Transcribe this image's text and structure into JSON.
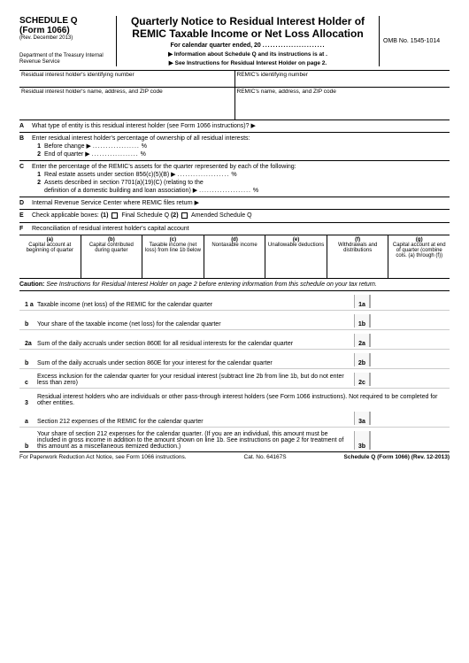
{
  "header": {
    "schedule": "SCHEDULE Q",
    "form": "(Form 1066)",
    "rev": "(Rev. December 2013)",
    "dept": "Department of the Treasury\nInternal Revenue Service",
    "title": "Quarterly Notice to Residual Interest Holder of REMIC Taxable Income or Net Loss Allocation",
    "for_qtr": "For calendar quarter ended, 20",
    "info1": "Information about Schedule Q and its instructions is at .",
    "info2": "See Instructions for Residual Interest Holder on page 2.",
    "omb": "OMB No. 1545-1014"
  },
  "id": {
    "left": "Residual interest holder's identifying number",
    "right": "REMIC's identifying number"
  },
  "addr": {
    "left": "Residual interest holder's name, address, and ZIP code",
    "right": "REMIC's name, address, and ZIP code"
  },
  "A": "What type of entity is this residual interest holder (see Form 1066 instructions)? ▶",
  "B": {
    "lead": "Enter residual interest holder's percentage of ownership of all residual interests:",
    "b1": "Before change ▶",
    "b2": "End of quarter ▶",
    "pct": "%"
  },
  "C": {
    "lead": "Enter the percentage of the REMIC's assets for the quarter represented by each of the following:",
    "c1": "Real estate assets under section 856(c)(5)(B) ▶",
    "c2a": "Assets described in section 7701(a)(19)(C) (relating to the",
    "c2b": "definition of a domestic building and loan association) ▶",
    "pct": "%"
  },
  "D": "Internal Revenue Service Center where REMIC files return ▶",
  "E": {
    "lead": "Check applicable boxes:",
    "e1": "(1)",
    "e1txt": "Final Schedule Q",
    "e2": "(2)",
    "e2txt": "Amended Schedule Q"
  },
  "F": "Reconciliation of residual interest holder's capital account",
  "recon_cols": [
    {
      "h": "(a)",
      "t": "Capital account at beginning of quarter"
    },
    {
      "h": "(b)",
      "t": "Capital contributed during quarter"
    },
    {
      "h": "(c)",
      "t": "Taxable income (net loss) from line 1b below"
    },
    {
      "h": "(d)",
      "t": "Nontaxable income"
    },
    {
      "h": "(e)",
      "t": "Unallowable deductions"
    },
    {
      "h": "(f)",
      "t": "Withdrawals and distributions"
    },
    {
      "h": "(g)",
      "t": "Capital account at end of quarter (combine cols. (a) through (f))"
    }
  ],
  "caution": {
    "b": "Caution:",
    "t": "See Instructions for Residual Interest Holder on page 2 before entering information from this schedule on your tax return."
  },
  "lines": [
    {
      "n": "1 a",
      "d": "Taxable income (net loss) of the REMIC for the calendar quarter",
      "box": "1a"
    },
    {
      "n": "b",
      "d": "Your share of the taxable income (net loss) for the calendar quarter",
      "box": "1b"
    },
    {
      "n": "2a",
      "d": "Sum of the daily accruals under section 860E for all residual interests for the calendar quarter",
      "box": "2a"
    },
    {
      "n": "b",
      "d": "Sum of the daily accruals under section 860E for your interest for the calendar quarter",
      "box": "2b"
    },
    {
      "n": "c",
      "d": "Excess inclusion for the calendar quarter for your residual interest (subtract line 2b from line 1b, but do not enter less than zero)",
      "box": "2c"
    },
    {
      "n": "3",
      "d": "Residual interest holders who are individuals or other pass-through interest holders (see Form 1066 instructions). Not required to be completed for other entities.",
      "box": ""
    },
    {
      "n": "a",
      "d": "Section 212 expenses of the REMIC for the calendar quarter",
      "box": "3a"
    },
    {
      "n": "b",
      "d": "Your share of section 212 expenses for the calendar quarter. (If you are an individual, this amount must be included in gross income in addition to the amount shown on line 1b. See instructions on page 2 for treatment of this amount as a miscellaneous itemized deduction.)",
      "box": "3b"
    }
  ],
  "footer": {
    "left": "For Paperwork Reduction Act Notice, see Form 1066 instructions.",
    "mid": "Cat. No. 64167S",
    "right": "Schedule Q (Form 1066) (Rev. 12-2013)"
  }
}
